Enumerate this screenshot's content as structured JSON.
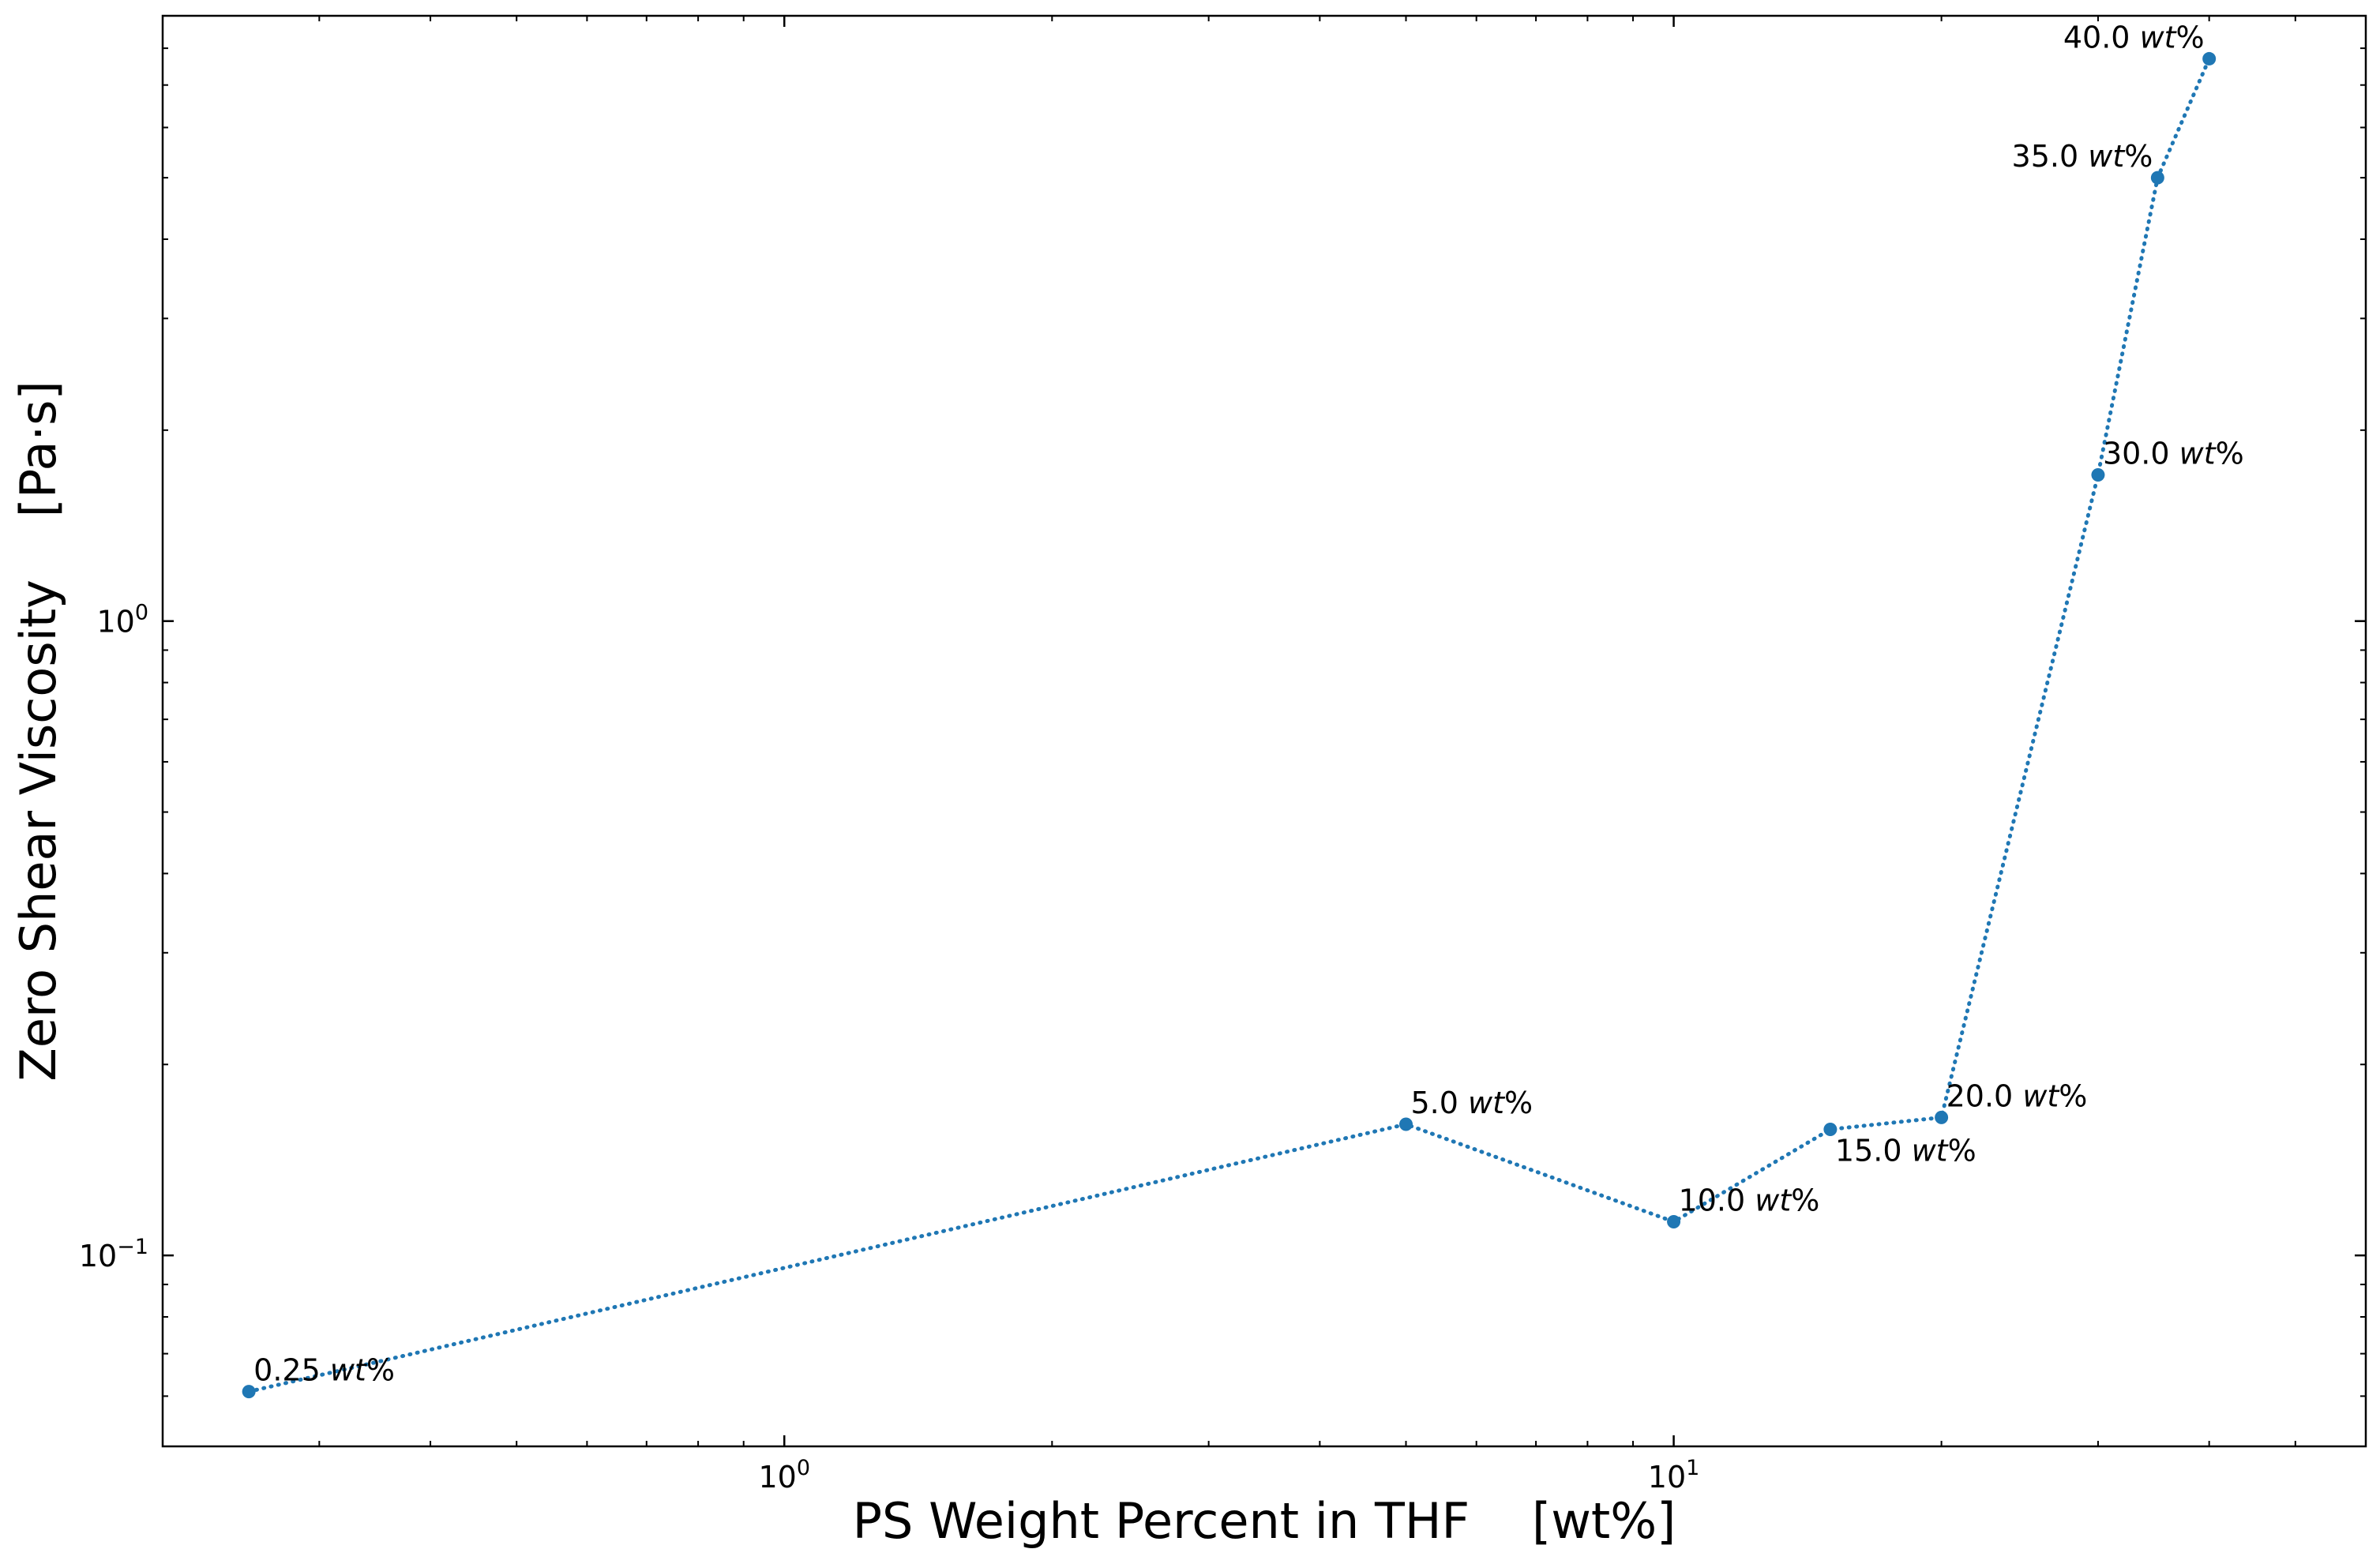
{
  "chart_data": {
    "type": "scatter",
    "title": "",
    "xlabel": "PS Weight Percent in THF    [wt%]",
    "ylabel": "Zero Shear Viscosity    [Pa·s]",
    "xscale": "log",
    "yscale": "log",
    "xlim": [
      0.2,
      60
    ],
    "ylim": [
      0.05,
      9
    ],
    "grid": false,
    "line_style": "dotted",
    "marker": "circle",
    "color": "#1f77b4",
    "x_ticks": [
      {
        "value": 1,
        "base": "10",
        "exp": "0"
      },
      {
        "value": 10,
        "base": "10",
        "exp": "1"
      }
    ],
    "y_ticks": [
      {
        "value": 0.1,
        "base": "10",
        "exp": "−1"
      },
      {
        "value": 1,
        "base": "10",
        "exp": "0"
      }
    ],
    "series": [
      {
        "x": [
          0.25,
          5.0,
          10.0,
          15.0,
          20.0,
          30.0,
          35.0,
          40.0
        ],
        "y": [
          0.061,
          0.161,
          0.113,
          0.158,
          0.165,
          1.7,
          5.0,
          7.7
        ]
      }
    ],
    "annotations": [
      {
        "x": 0.25,
        "y": 0.061,
        "num": "0.25 ",
        "unit": "wt",
        "suffix": "%",
        "pos": "upper-right"
      },
      {
        "x": 5.0,
        "y": 0.161,
        "num": "5.0 ",
        "unit": "wt",
        "suffix": "%",
        "pos": "upper-right"
      },
      {
        "x": 10.0,
        "y": 0.113,
        "num": "10.0 ",
        "unit": "wt",
        "suffix": "%",
        "pos": "upper-right"
      },
      {
        "x": 15.0,
        "y": 0.158,
        "num": "15.0 ",
        "unit": "wt",
        "suffix": "%",
        "pos": "lower-right"
      },
      {
        "x": 20.0,
        "y": 0.165,
        "num": "20.0 ",
        "unit": "wt",
        "suffix": "%",
        "pos": "upper-right"
      },
      {
        "x": 30.0,
        "y": 1.7,
        "num": "30.0 ",
        "unit": "wt",
        "suffix": "%",
        "pos": "upper-right"
      },
      {
        "x": 35.0,
        "y": 5.0,
        "num": "35.0 ",
        "unit": "wt",
        "suffix": "%",
        "pos": "upper-left"
      },
      {
        "x": 40.0,
        "y": 7.7,
        "num": "40.0 ",
        "unit": "wt",
        "suffix": "%",
        "pos": "upper-left"
      }
    ]
  }
}
